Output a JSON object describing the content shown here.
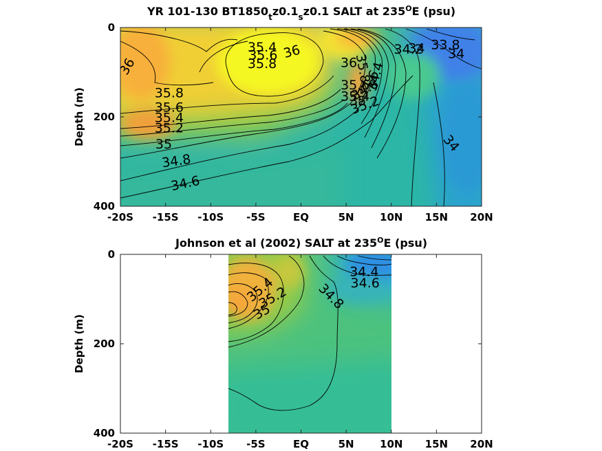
{
  "chart_data": [
    {
      "type": "heatmap",
      "title_parts": [
        "YR 101-130 BT1850",
        "t",
        "z0.1",
        "s",
        "z0.1 SALT at 235",
        "O",
        "E (psu)"
      ],
      "xlabel": "",
      "ylabel": "Depth (m)",
      "x_ticks": [
        "-20S",
        "-15S",
        "-10S",
        "-5S",
        "EQ",
        "5N",
        "10N",
        "15N",
        "20N"
      ],
      "y_ticks": [
        "0",
        "200",
        "400"
      ],
      "xlim": [
        -20,
        20
      ],
      "ylim": [
        0,
        400
      ],
      "y_reversed": true,
      "contour_labels": [
        {
          "text": "35.4",
          "lat": -4.3,
          "depth": 45,
          "angle": 0
        },
        {
          "text": "35.6",
          "lat": -4.2,
          "depth": 63,
          "angle": 0
        },
        {
          "text": "35.8",
          "lat": -4.3,
          "depth": 82,
          "angle": 0
        },
        {
          "text": "36",
          "lat": -1.0,
          "depth": 55,
          "angle": -15
        },
        {
          "text": "36",
          "lat": -19.2,
          "depth": 88,
          "angle": -60
        },
        {
          "text": "35.8",
          "lat": -14.6,
          "depth": 148,
          "angle": 0
        },
        {
          "text": "35.6",
          "lat": -14.6,
          "depth": 180,
          "angle": 0
        },
        {
          "text": "35.4",
          "lat": -14.6,
          "depth": 203,
          "angle": 0
        },
        {
          "text": "35.2",
          "lat": -14.6,
          "depth": 226,
          "angle": 0
        },
        {
          "text": "35",
          "lat": -15.2,
          "depth": 262,
          "angle": 0
        },
        {
          "text": "34.8",
          "lat": -13.8,
          "depth": 300,
          "angle": -8
        },
        {
          "text": "34.6",
          "lat": -12.8,
          "depth": 350,
          "angle": -12
        },
        {
          "text": "36",
          "lat": 5.3,
          "depth": 80,
          "angle": 0
        },
        {
          "text": "35.8",
          "lat": 6.8,
          "depth": 92,
          "angle": 80
        },
        {
          "text": "35.6",
          "lat": 6.0,
          "depth": 130,
          "angle": 0
        },
        {
          "text": "35.4",
          "lat": 6.0,
          "depth": 155,
          "angle": 0
        },
        {
          "text": "35.2",
          "lat": 7.1,
          "depth": 175,
          "angle": -20
        },
        {
          "text": "35",
          "lat": 6.3,
          "depth": 165,
          "angle": 0
        },
        {
          "text": "34.8",
          "lat": 7.1,
          "depth": 140,
          "angle": -30
        },
        {
          "text": "34.6",
          "lat": 7.5,
          "depth": 127,
          "angle": -60
        },
        {
          "text": "34.4",
          "lat": 8.3,
          "depth": 110,
          "angle": -75
        },
        {
          "text": "34.2",
          "lat": 11.9,
          "depth": 50,
          "angle": 0
        },
        {
          "text": "34",
          "lat": 12.8,
          "depth": 48,
          "angle": 0
        },
        {
          "text": "33.8",
          "lat": 16.0,
          "depth": 40,
          "angle": 0
        },
        {
          "text": "34",
          "lat": 17.2,
          "depth": 60,
          "angle": 0
        },
        {
          "text": "34",
          "lat": 16.6,
          "depth": 260,
          "angle": 50
        }
      ]
    },
    {
      "type": "heatmap",
      "title_parts": [
        "Johnson et al (2002) SALT at 235",
        "O",
        "E (psu)"
      ],
      "xlabel": "",
      "ylabel": "Depth (m)",
      "x_ticks": [
        "-20S",
        "-15S",
        "-10S",
        "-5S",
        "EQ",
        "5N",
        "10N",
        "15N",
        "20N"
      ],
      "y_ticks": [
        "0",
        "200",
        "400"
      ],
      "xlim": [
        -20,
        20
      ],
      "ylim": [
        0,
        400
      ],
      "y_reversed": true,
      "data_extent_lat": [
        -8,
        10
      ],
      "contour_labels": [
        {
          "text": "34.4",
          "lat": 7.0,
          "depth": 40,
          "angle": 0
        },
        {
          "text": "34.6",
          "lat": 7.1,
          "depth": 65,
          "angle": 0
        },
        {
          "text": "34.8",
          "lat": 3.3,
          "depth": 95,
          "angle": 45
        },
        {
          "text": "35.4",
          "lat": -4.5,
          "depth": 80,
          "angle": -40
        },
        {
          "text": "35.2",
          "lat": -3.1,
          "depth": 98,
          "angle": -30
        },
        {
          "text": "35",
          "lat": -4.3,
          "depth": 130,
          "angle": -30
        }
      ]
    }
  ]
}
